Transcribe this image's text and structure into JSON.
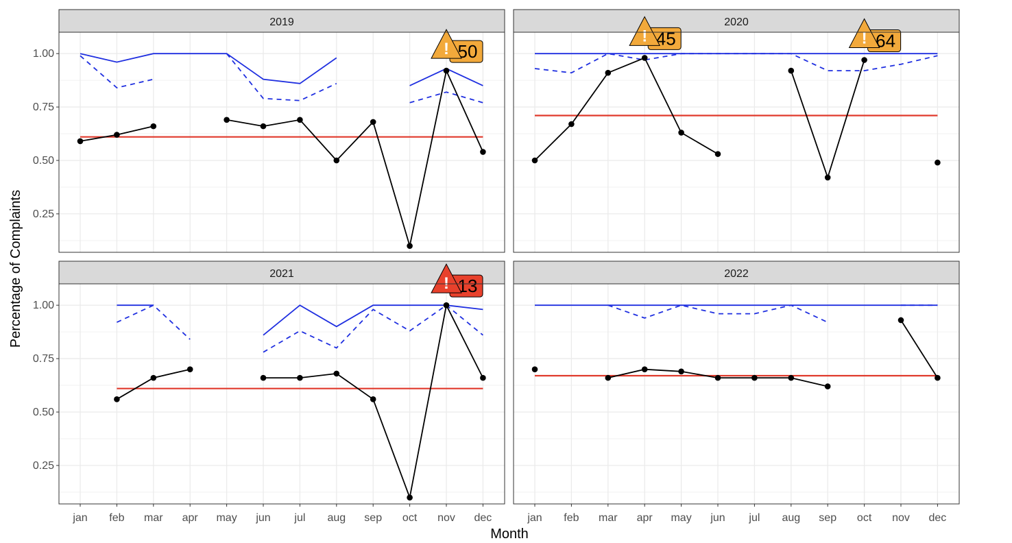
{
  "chart_data": {
    "type": "line",
    "xlabel": "Month",
    "ylabel": "Percentage of Complaints",
    "months": [
      "jan",
      "feb",
      "mar",
      "apr",
      "may",
      "jun",
      "jul",
      "aug",
      "sep",
      "oct",
      "nov",
      "dec"
    ],
    "y_ticks": [
      "0.25",
      "0.50",
      "0.75",
      "1.00"
    ],
    "ylim": [
      0.07,
      1.1
    ],
    "grid": true,
    "legend": "none",
    "colors": {
      "observed": "#000000",
      "upper_limit": "#1f2fe0",
      "upper_warning": "#1f2fe0",
      "center": "#e0392b",
      "alert_orange": "#f2a93b",
      "alert_red": "#e8412c",
      "strip_fill": "#d9d9d9"
    },
    "panels": [
      {
        "title": "2019",
        "observed": [
          0.59,
          0.62,
          0.66,
          null,
          0.69,
          0.66,
          0.69,
          0.5,
          0.68,
          0.1,
          0.92,
          0.54
        ],
        "upper_limit": [
          1.0,
          0.96,
          1.0,
          1.0,
          1.0,
          0.88,
          0.86,
          0.98,
          null,
          0.85,
          0.93,
          0.85
        ],
        "upper_warning": [
          0.99,
          0.84,
          0.88,
          null,
          1.0,
          0.79,
          0.78,
          0.86,
          null,
          0.77,
          0.82,
          0.77
        ],
        "center": [
          0.61,
          0.61,
          0.61,
          0.61,
          0.61,
          0.61,
          0.61,
          0.61,
          0.61,
          0.61,
          0.61,
          0.61
        ],
        "alerts": [
          {
            "month": "nov",
            "value": 0.92,
            "label": "50",
            "level": "orange"
          }
        ]
      },
      {
        "title": "2020",
        "observed": [
          0.5,
          0.67,
          0.91,
          0.98,
          0.63,
          0.53,
          null,
          0.92,
          0.42,
          0.97,
          null,
          0.49
        ],
        "upper_limit": [
          1.0,
          1.0,
          1.0,
          1.0,
          1.0,
          1.0,
          1.0,
          1.0,
          1.0,
          1.0,
          1.0,
          1.0
        ],
        "upper_warning": [
          0.93,
          0.91,
          1.0,
          0.97,
          1.0,
          1.0,
          1.0,
          1.0,
          0.92,
          0.92,
          0.95,
          0.99
        ],
        "center": [
          0.71,
          0.71,
          0.71,
          0.71,
          0.71,
          0.71,
          0.71,
          0.71,
          0.71,
          0.71,
          0.71,
          0.71
        ],
        "alerts": [
          {
            "month": "apr",
            "value": 0.98,
            "label": "45",
            "level": "orange"
          },
          {
            "month": "oct",
            "value": 0.97,
            "label": "64",
            "level": "orange"
          }
        ]
      },
      {
        "title": "2021",
        "observed": [
          null,
          0.56,
          0.66,
          0.7,
          null,
          0.66,
          0.66,
          0.68,
          0.56,
          0.1,
          1.0,
          0.66
        ],
        "upper_limit": [
          null,
          1.0,
          1.0,
          null,
          null,
          0.86,
          1.0,
          0.9,
          1.0,
          1.0,
          1.0,
          0.98
        ],
        "upper_warning": [
          null,
          0.92,
          1.0,
          0.84,
          null,
          0.78,
          0.88,
          0.8,
          0.98,
          0.88,
          1.0,
          0.86
        ],
        "center": [
          null,
          0.61,
          0.61,
          0.61,
          0.61,
          0.61,
          0.61,
          0.61,
          0.61,
          0.61,
          0.61,
          0.61
        ],
        "alerts": [
          {
            "month": "nov",
            "value": 1.0,
            "label": "13",
            "level": "red"
          }
        ]
      },
      {
        "title": "2022",
        "observed": [
          0.7,
          null,
          0.66,
          0.7,
          0.69,
          0.66,
          0.66,
          0.66,
          0.62,
          null,
          0.93,
          0.66
        ],
        "upper_limit": [
          1.0,
          1.0,
          1.0,
          1.0,
          1.0,
          1.0,
          1.0,
          1.0,
          1.0,
          1.0,
          1.0,
          1.0
        ],
        "upper_warning": [
          1.0,
          null,
          1.0,
          0.94,
          1.0,
          0.96,
          0.96,
          1.0,
          0.92,
          null,
          1.0,
          1.0
        ],
        "center": [
          0.67,
          0.67,
          0.67,
          0.67,
          0.67,
          0.67,
          0.67,
          0.67,
          0.67,
          0.67,
          0.67,
          0.67
        ],
        "alerts": []
      }
    ]
  }
}
